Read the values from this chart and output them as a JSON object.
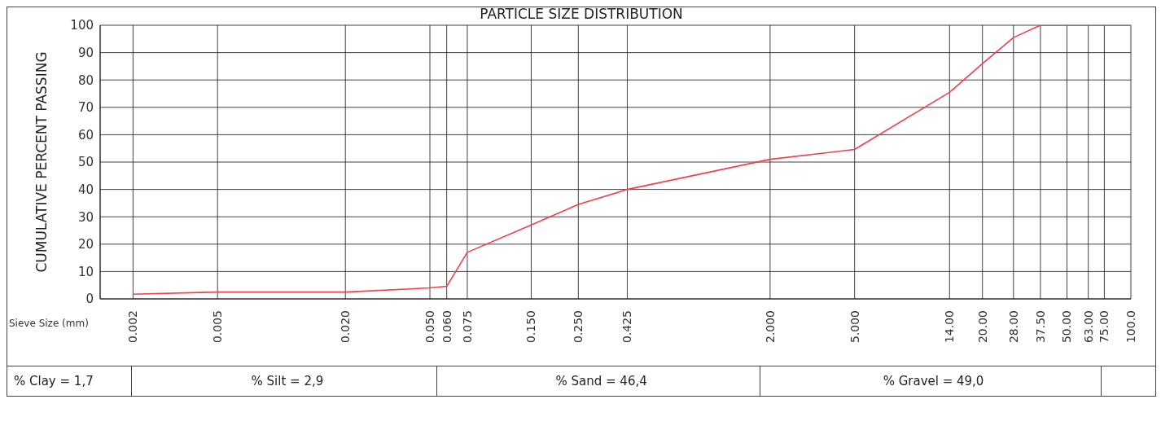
{
  "chart_data": {
    "type": "line",
    "title": "PARTICLE SIZE DISTRIBUTION",
    "xlabel": "Sieve Size (mm)",
    "ylabel": "CUMULATIVE PERCENT PASSING",
    "log": "x",
    "grid": true,
    "marker": "none",
    "line_style": "solid",
    "x": [
      0.002,
      0.005,
      0.02,
      0.05,
      0.06,
      0.075,
      0.15,
      0.25,
      0.425,
      2.0,
      5.0,
      14.0,
      20.0,
      28.0,
      37.5,
      50.0,
      63.0,
      75.0,
      100.0
    ],
    "series": [
      {
        "color": "#f0404a",
        "values": [
          1.7,
          2.5,
          2.5,
          4.0,
          4.6,
          17,
          27,
          34.5,
          40,
          51,
          54.6,
          75.5,
          86,
          95.5,
          100,
          100,
          100,
          100,
          100
        ]
      }
    ],
    "xlim": [
      0.0014,
      100
    ],
    "xticks": [
      {
        "value": 0.002,
        "label": "0.002"
      },
      {
        "value": 0.005,
        "label": "0.005"
      },
      {
        "value": 0.02,
        "label": "0.020"
      },
      {
        "value": 0.05,
        "label": "0.050"
      },
      {
        "value": 0.06,
        "label": "0.060"
      },
      {
        "value": 0.075,
        "label": "0.075"
      },
      {
        "value": 0.15,
        "label": "0.150"
      },
      {
        "value": 0.25,
        "label": "0.250"
      },
      {
        "value": 0.425,
        "label": "0.425"
      },
      {
        "value": 2,
        "label": "2.000"
      },
      {
        "value": 5,
        "label": "5.000"
      },
      {
        "value": 14,
        "label": "14.00"
      },
      {
        "value": 20,
        "label": "20.00"
      },
      {
        "value": 28,
        "label": "28.00"
      },
      {
        "value": 37.5,
        "label": "37.50"
      },
      {
        "value": 50,
        "label": "50.00"
      },
      {
        "value": 63,
        "label": "63.00"
      },
      {
        "value": 75,
        "label": "75.00"
      },
      {
        "value": 100,
        "label": "100.0"
      }
    ],
    "ylim": [
      0,
      100
    ],
    "yticks": [
      0,
      10,
      20,
      30,
      40,
      50,
      60,
      70,
      80,
      90,
      100
    ],
    "annotations": [
      "% Clay = 1,7",
      "% Silt = 2,9",
      "% Sand = 46,4",
      "% Gravel = 49,0"
    ]
  }
}
